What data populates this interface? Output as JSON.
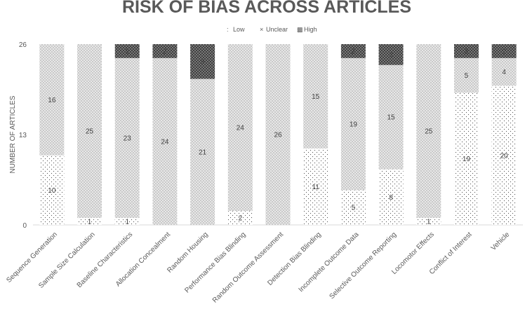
{
  "chart_data": {
    "type": "bar",
    "stacked": true,
    "title": "RISK OF BIAS ACROSS ARTICLES",
    "ylabel": "NUMBER OF ARTICLES",
    "xlabel": "",
    "ylim": [
      0,
      26
    ],
    "yticks": [
      0,
      13,
      26
    ],
    "legend_position": "top",
    "categories": [
      "Sequence Generation",
      "Sample Size Calculation",
      "Baseline Characteristics",
      "Allocation Concealment",
      "Random Housing",
      "Performance Bias Blinding",
      "Random Outcome Assessment",
      "Detection Bias Blinding",
      "Incomplete Outcome Data",
      "Selective Outcome Reporting",
      "Locomotor Effects",
      "Conflict of Interest",
      "Vehicle"
    ],
    "series": [
      {
        "name": "Low",
        "pattern": "dots",
        "values": [
          10,
          1,
          1,
          0,
          0,
          2,
          0,
          11,
          5,
          8,
          1,
          19,
          20
        ]
      },
      {
        "name": "Unclear",
        "pattern": "crosshatch-light",
        "values": [
          16,
          25,
          23,
          24,
          21,
          24,
          26,
          15,
          19,
          15,
          25,
          5,
          4
        ]
      },
      {
        "name": "High",
        "pattern": "crosshatch-dark",
        "values": [
          0,
          0,
          2,
          2,
          5,
          0,
          0,
          0,
          2,
          3,
          0,
          2,
          2
        ]
      }
    ],
    "data_labels": {
      "Low": [
        "10",
        "1",
        "1",
        "",
        "",
        "2",
        "",
        "11",
        "5",
        "8",
        "1",
        "19",
        "20"
      ],
      "Unclear": [
        "16",
        "25",
        "23",
        "24",
        "21",
        "24",
        "26",
        "15",
        "19",
        "15",
        "25",
        "5",
        "4"
      ],
      "High": [
        "",
        "",
        "2",
        "2",
        "5",
        "",
        "",
        "",
        "2",
        "3",
        "",
        "2",
        "2"
      ]
    },
    "legend": [
      {
        "symbol": ":",
        "label": "Low"
      },
      {
        "symbol": "×",
        "label": "Unclear"
      },
      {
        "symbol": "▩",
        "label": "High"
      }
    ],
    "colors": {
      "text": "#595959",
      "bar_bg": "#ffffff",
      "dots": "#555555",
      "cross_light": "#bfbfbf",
      "cross_dark": "#404040"
    }
  }
}
